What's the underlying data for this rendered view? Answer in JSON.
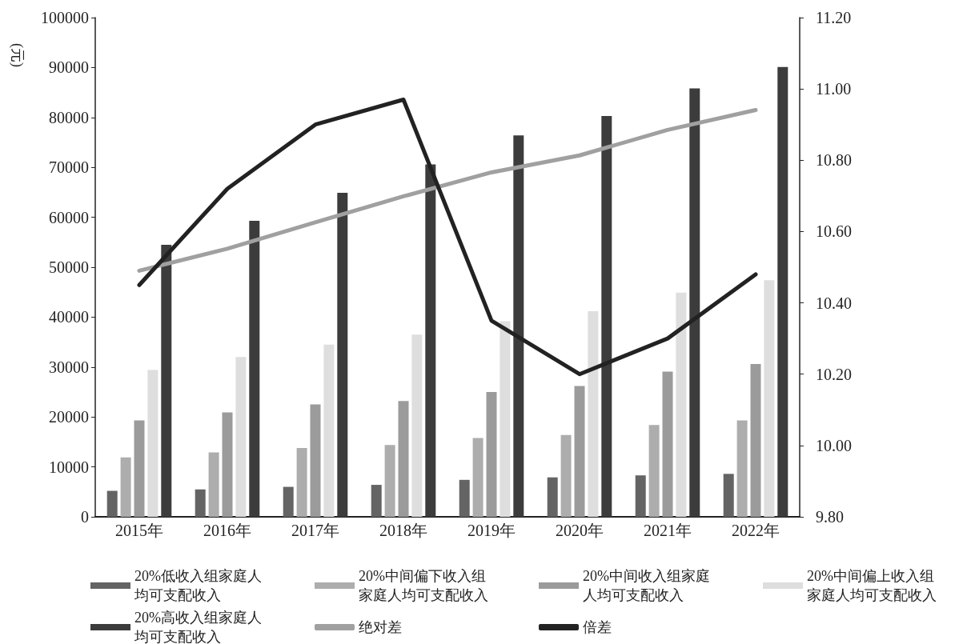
{
  "chart_data": {
    "type": "bar",
    "ylabel": "(元)",
    "categories": [
      "2015年",
      "2016年",
      "2017年",
      "2018年",
      "2019年",
      "2020年",
      "2021年",
      "2022年"
    ],
    "series": [
      {
        "name": "20%低收入组家庭人均可支配收入",
        "color": "#646464",
        "values": [
          5200,
          5500,
          6000,
          6400,
          7400,
          7900,
          8300,
          8600
        ]
      },
      {
        "name": "20%中间偏下收入组家庭人均可支配收入",
        "color": "#adadad",
        "values": [
          11900,
          12900,
          13800,
          14400,
          15800,
          16400,
          18400,
          19300
        ]
      },
      {
        "name": "20%中间收入组家庭人均可支配收入",
        "color": "#9b9b9b",
        "values": [
          19300,
          20900,
          22500,
          23200,
          25000,
          26200,
          29100,
          30600
        ]
      },
      {
        "name": "20%中间偏上收入组家庭人均可支配收入",
        "color": "#dedede",
        "values": [
          29400,
          32000,
          34500,
          36500,
          39200,
          41200,
          44900,
          47400
        ]
      },
      {
        "name": "20%高收入组家庭人均可支配收入",
        "color": "#3c3c3c",
        "values": [
          54500,
          59300,
          64900,
          70600,
          76400,
          80300,
          85800,
          90100
        ]
      },
      {
        "name": "绝对差",
        "type": "line",
        "color": "#a0a0a0",
        "values": [
          49300,
          53700,
          59000,
          64200,
          69000,
          72400,
          77500,
          81500
        ]
      },
      {
        "name": "倍差",
        "type": "line",
        "axis": "y2",
        "color": "#222222",
        "values": [
          10.45,
          10.72,
          10.9,
          10.97,
          10.35,
          10.2,
          10.3,
          10.48
        ]
      }
    ],
    "ylim": [
      0,
      100000
    ],
    "yticks": [
      0,
      10000,
      20000,
      30000,
      40000,
      50000,
      60000,
      70000,
      80000,
      90000,
      100000
    ],
    "y2lim": [
      9.8,
      11.2
    ],
    "y2ticks": [
      {
        "value": 9.8,
        "label": "9.80"
      },
      {
        "value": 10.0,
        "label": "10.00"
      },
      {
        "value": 10.2,
        "label": "10.20"
      },
      {
        "value": 10.4,
        "label": "10.40"
      },
      {
        "value": 10.6,
        "label": "10.60"
      },
      {
        "value": 10.8,
        "label": "10.80"
      },
      {
        "value": 11.0,
        "label": "11.00"
      },
      {
        "value": 11.2,
        "label": "11.20"
      }
    ],
    "legend": "bottom",
    "grid": false,
    "marker": "none",
    "line_style": "solid"
  }
}
